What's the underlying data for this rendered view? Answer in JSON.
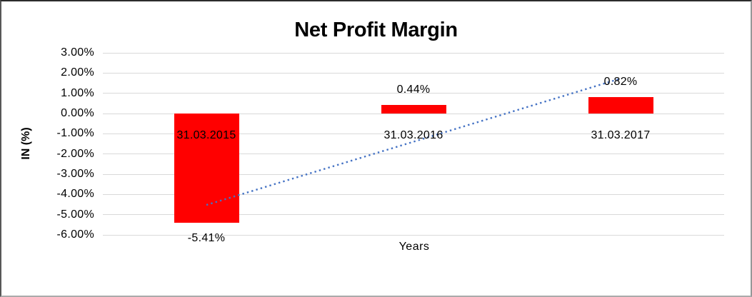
{
  "chart_data": {
    "type": "bar",
    "title": "Net Profit Margin",
    "xlabel": "Years",
    "ylabel": "IN (%)",
    "categories": [
      "31.03.2015",
      "31.03.2016",
      "31.03.2017"
    ],
    "values": [
      -5.41,
      0.44,
      0.82
    ],
    "data_labels": [
      "-5.41%",
      "0.44%",
      "0.82%"
    ],
    "ylim": [
      -6,
      3
    ],
    "ytick_step": 1,
    "ytick_labels": [
      "3.00%",
      "2.00%",
      "1.00%",
      "0.00%",
      "-1.00%",
      "-2.00%",
      "-3.00%",
      "-4.00%",
      "-5.00%",
      "-6.00%"
    ],
    "grid": "horizontal-gridlines",
    "legend_position": "none",
    "colors": {
      "bar": "#FF0000",
      "trendline": "#4472C4",
      "gridline": "#D9D9D9",
      "text": "#000000"
    },
    "trendline": {
      "shape": "linear-dotted",
      "start_value": -4.52,
      "end_value": 1.73
    }
  }
}
